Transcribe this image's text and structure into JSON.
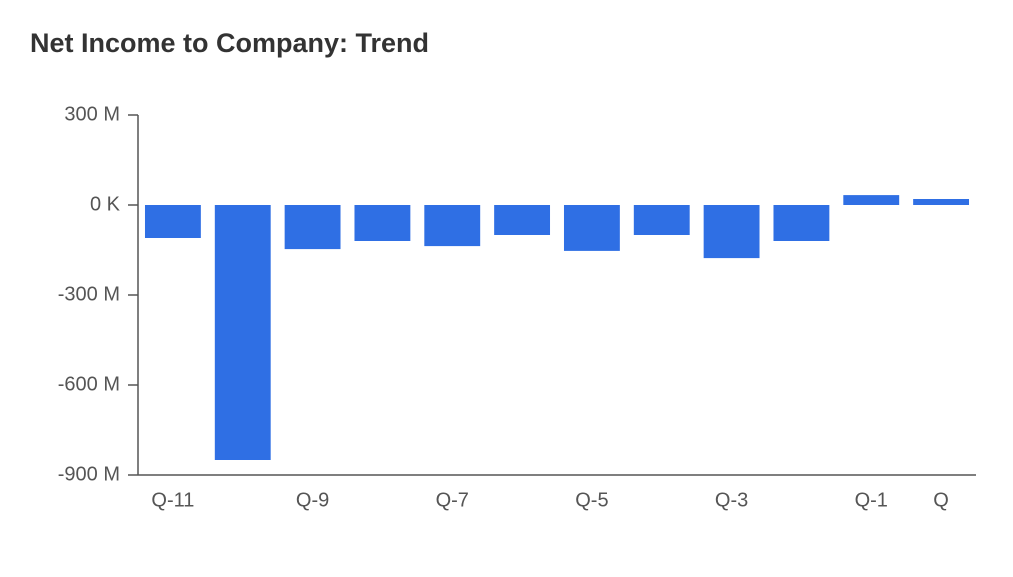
{
  "chart_data": {
    "type": "bar",
    "title": "Net Income to Company: Trend",
    "categories": [
      "Q-11",
      null,
      "Q-9",
      null,
      "Q-7",
      null,
      "Q-5",
      null,
      "Q-3",
      null,
      "Q-1",
      "Q"
    ],
    "values": [
      -110000000,
      -850000000,
      -147000000,
      -120000000,
      -137000000,
      -100000000,
      -153000000,
      -100000000,
      -177000000,
      -120000000,
      33000000,
      20000000
    ],
    "color": "#2f6fe4",
    "ylim": [
      -900000000,
      300000000
    ],
    "yticks": [
      {
        "value": -900000000,
        "label": "-900 M"
      },
      {
        "value": -600000000,
        "label": "-600 M"
      },
      {
        "value": -300000000,
        "label": "-300 M"
      },
      {
        "value": 0,
        "label": "0 K"
      },
      {
        "value": 300000000,
        "label": "300 M"
      }
    ],
    "grid": false
  }
}
